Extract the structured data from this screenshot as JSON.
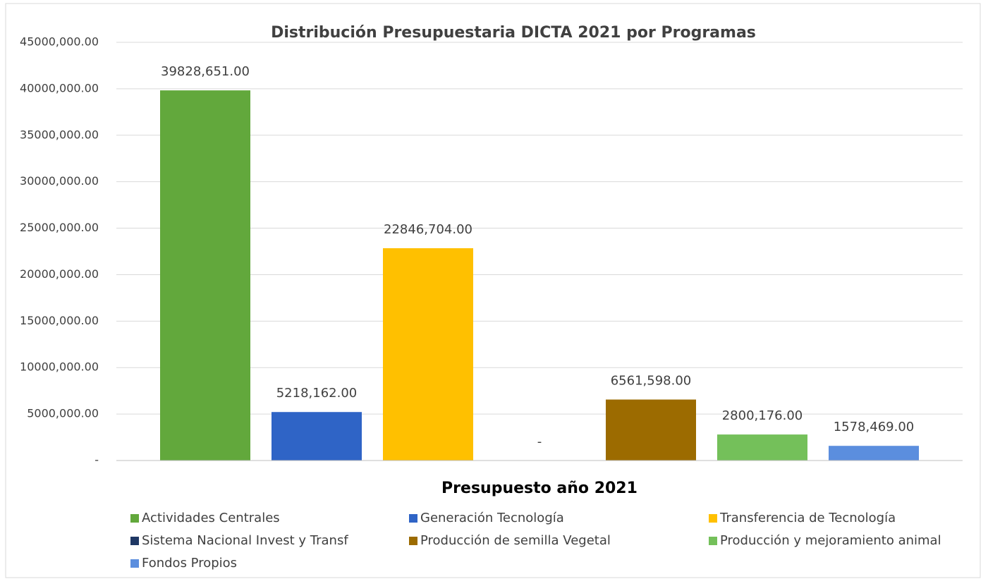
{
  "chart_data": {
    "type": "bar",
    "title": "Distribución Presupuestaria DICTA 2021 por Programas",
    "categories": [
      "Presupuesto año 2021"
    ],
    "series": [
      {
        "name": "Actividades Centrales",
        "color": "#62a83c",
        "values": [
          39828651
        ],
        "value_labels": [
          "39828,651.00"
        ]
      },
      {
        "name": "Generación Tecnología",
        "color": "#2f64c6",
        "values": [
          5218162
        ],
        "value_labels": [
          "5218,162.00"
        ]
      },
      {
        "name": "Transferencia de Tecnología",
        "color": "#ffc000",
        "values": [
          22846704
        ],
        "value_labels": [
          "22846,704.00"
        ]
      },
      {
        "name": "Sistema Nacional Invest y Transf",
        "color": "#1f3864",
        "values": [
          0
        ],
        "value_labels": [
          "-"
        ]
      },
      {
        "name": "Producción de semilla Vegetal",
        "color": "#9c6b00",
        "values": [
          6561598
        ],
        "value_labels": [
          "6561,598.00"
        ]
      },
      {
        "name": "Producción y mejoramiento animal",
        "color": "#74c05a",
        "values": [
          2800176
        ],
        "value_labels": [
          "2800,176.00"
        ]
      },
      {
        "name": "Fondos Propios",
        "color": "#5b8ede",
        "values": [
          1578469
        ],
        "value_labels": [
          "1578,469.00"
        ]
      }
    ],
    "ylim": [
      0,
      45000000
    ],
    "yticks": [
      {
        "value": 0,
        "label": "-"
      },
      {
        "value": 5000000,
        "label": "5000,000.00"
      },
      {
        "value": 10000000,
        "label": "10000,000.00"
      },
      {
        "value": 15000000,
        "label": "15000,000.00"
      },
      {
        "value": 20000000,
        "label": "20000,000.00"
      },
      {
        "value": 25000000,
        "label": "25000,000.00"
      },
      {
        "value": 30000000,
        "label": "30000,000.00"
      },
      {
        "value": 35000000,
        "label": "35000,000.00"
      },
      {
        "value": 40000000,
        "label": "40000,000.00"
      },
      {
        "value": 45000000,
        "label": "45000,000.00"
      }
    ],
    "grid": true
  }
}
